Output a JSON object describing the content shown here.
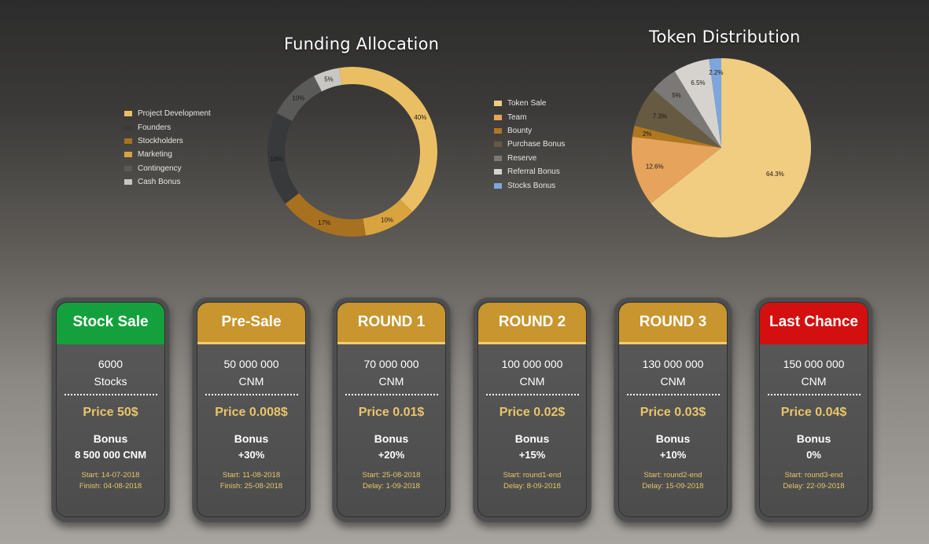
{
  "funding": {
    "title": "Funding Allocation"
  },
  "token": {
    "title": "Token Distribution"
  },
  "chart_data": [
    {
      "type": "pie",
      "variant": "donut",
      "title": "Funding Allocation",
      "legend_position": "left",
      "categories": [
        "Project Development",
        "Founders",
        "Stockholders",
        "Marketing",
        "Contingency",
        "Cash Bonus"
      ],
      "series": [
        {
          "values": [
            40,
            18,
            17,
            10,
            10,
            5
          ],
          "slice_labels": [
            "40%",
            "18%",
            "17%",
            "10%",
            "10%",
            "5%"
          ]
        }
      ],
      "drawing_order": [
        {
          "category": "Cash Bonus",
          "value": 5,
          "label": "5%",
          "color": "#c9c7c3",
          "show_label": true
        },
        {
          "category": "Project Development",
          "value": 40,
          "label": "40%",
          "color": "#eabf63",
          "show_label": true
        },
        {
          "category": "Marketing",
          "value": 10,
          "label": "10%",
          "color": "#d9a43e",
          "show_label": true
        },
        {
          "category": "Stockholders",
          "value": 17,
          "label": "17%",
          "color": "#a8711f",
          "show_label": true
        },
        {
          "category": "Founders",
          "value": 18,
          "label": "18%",
          "color": "#37393a",
          "show_label": true
        },
        {
          "category": "Contingency",
          "value": 10,
          "label": "10%",
          "color": "#5a5a58",
          "show_label": true
        }
      ],
      "legend": [
        {
          "label": "Project Development",
          "color": "#eabf63"
        },
        {
          "label": "Founders",
          "color": "#37393a"
        },
        {
          "label": "Stockholders",
          "color": "#a8711f"
        },
        {
          "label": "Marketing",
          "color": "#d9a43e"
        },
        {
          "label": "Contingency",
          "color": "#5a5a58"
        },
        {
          "label": "Cash Bonus",
          "color": "#c9c7c3"
        }
      ]
    },
    {
      "type": "pie",
      "title": "Token Distribution",
      "legend_position": "left",
      "categories": [
        "Token Sale",
        "Team",
        "Bounty",
        "Purchase Bonus",
        "Reserve",
        "Referral Bonus",
        "Stocks Bonus"
      ],
      "series": [
        {
          "values": [
            64.3,
            12.6,
            2,
            7.3,
            5,
            6.5,
            2.2
          ],
          "slice_labels": [
            "64.3%",
            "12.6%",
            "2%",
            "7.3%",
            "5%",
            "6.5%",
            "2.2%"
          ]
        }
      ],
      "drawing_order": [
        {
          "category": "Token Sale",
          "value": 64.3,
          "label": "64.3%",
          "color": "#f0cd80",
          "show_label": true
        },
        {
          "category": "Team",
          "value": 12.6,
          "label": "12.6%",
          "color": "#e6a35c",
          "show_label": true
        },
        {
          "category": "Bounty",
          "value": 2,
          "label": "2%",
          "color": "#b0771f",
          "show_label": true
        },
        {
          "category": "Purchase Bonus",
          "value": 7.3,
          "label": "7.3%",
          "color": "#665a42",
          "show_label": true
        },
        {
          "category": "Reserve",
          "value": 5,
          "label": "5%",
          "color": "#7a7976",
          "show_label": true
        },
        {
          "category": "Referral Bonus",
          "value": 6.5,
          "label": "6.5%",
          "color": "#d6d3cf",
          "show_label": true
        },
        {
          "category": "Stocks Bonus",
          "value": 2.2,
          "label": "2.2%",
          "color": "#7ea6dc",
          "show_label": true
        }
      ],
      "legend": [
        {
          "label": "Token Sale",
          "color": "#f0cd80"
        },
        {
          "label": "Team",
          "color": "#e6a35c"
        },
        {
          "label": "Bounty",
          "color": "#b0771f"
        },
        {
          "label": "Purchase Bonus",
          "color": "#665a42"
        },
        {
          "label": "Reserve",
          "color": "#7a7976"
        },
        {
          "label": "Referral Bonus",
          "color": "#d6d3cf"
        },
        {
          "label": "Stocks Bonus",
          "color": "#7ea6dc"
        }
      ]
    }
  ],
  "cards": [
    {
      "title": "Stock Sale",
      "header_color": "#14a13d",
      "underline_color": "#14a13d",
      "amount": "6000",
      "unit": "Stocks",
      "price": "Price 50$",
      "bonus_label": "Bonus",
      "bonus_value": "8 500 000 CNM",
      "date1": "Start: 14-07-2018",
      "date2": "Finish: 04-08-2018"
    },
    {
      "title": "Pre-Sale",
      "header_color": "#c8952e",
      "underline_color": "#efcf6e",
      "amount": "50 000 000",
      "unit": "CNM",
      "price": "Price 0.008$",
      "bonus_label": "Bonus",
      "bonus_value": "+30%",
      "date1": "Start: 11-08-2018",
      "date2": "Finish: 25-08-2018"
    },
    {
      "title": "ROUND 1",
      "header_color": "#c8952e",
      "underline_color": "#efcf6e",
      "amount": "70 000 000",
      "unit": "CNM",
      "price": "Price 0.01$",
      "bonus_label": "Bonus",
      "bonus_value": "+20%",
      "date1": "Start: 25-08-2018",
      "date2": "Delay: 1-09-2018"
    },
    {
      "title": "ROUND 2",
      "header_color": "#c8952e",
      "underline_color": "#efcf6e",
      "amount": "100 000 000",
      "unit": "CNM",
      "price": "Price 0.02$",
      "bonus_label": "Bonus",
      "bonus_value": "+15%",
      "date1": "Start: round1-end",
      "date2": "Delay: 8-09-2018"
    },
    {
      "title": "ROUND 3",
      "header_color": "#c8952e",
      "underline_color": "#efcf6e",
      "amount": "130 000 000",
      "unit": "CNM",
      "price": "Price 0.03$",
      "bonus_label": "Bonus",
      "bonus_value": "+10%",
      "date1": "Start: round2-end",
      "date2": "Delay: 15-09-2018"
    },
    {
      "title": "Last Chance",
      "header_color": "#d30f0f",
      "underline_color": "#d30f0f",
      "amount": "150 000 000",
      "unit": "CNM",
      "price": "Price 0.04$",
      "bonus_label": "Bonus",
      "bonus_value": "0%",
      "date1": "Start: round3-end",
      "date2": "Delay: 22-09-2018"
    }
  ]
}
